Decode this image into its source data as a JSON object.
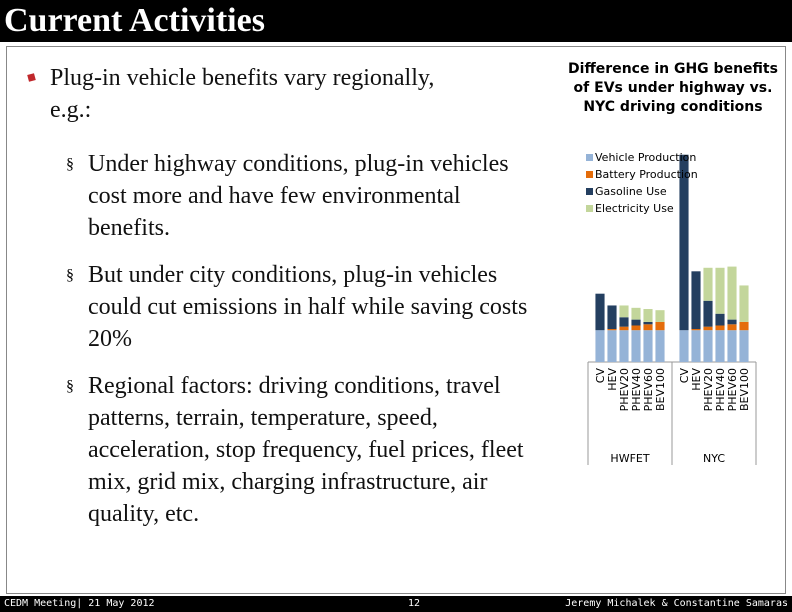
{
  "header": {
    "title": "Current Activities"
  },
  "bullets": [
    {
      "text": "Plug-in vehicle benefits vary regionally, e.g.:",
      "sub": [
        "Under highway conditions, plug-in vehicles cost more and have few environmental benefits.",
        "But under city conditions, plug-in vehicles could cut emissions in half while saving costs 20%",
        "Regional factors: driving conditions, travel patterns, terrain, temperature, speed, acceleration, stop frequency, fuel prices, fleet mix, grid mix, charging infrastructure, air quality, etc."
      ]
    }
  ],
  "chart_data": {
    "type": "stacked-bar",
    "title": "Difference in GHG benefits of EVs under highway vs. NYC driving conditions",
    "categories": [
      "CV",
      "HEV",
      "PHEV20",
      "PHEV40",
      "PHEV60",
      "BEV100",
      "CV",
      "HEV",
      "PHEV20",
      "PHEV40",
      "PHEV60",
      "BEV100"
    ],
    "groups": [
      "HWFET",
      "NYC"
    ],
    "ylim": [
      0,
      18
    ],
    "series": [
      {
        "name": "Vehicle Production",
        "color": "#95b3d7",
        "values": [
          2.7,
          2.7,
          2.7,
          2.7,
          2.7,
          2.7,
          2.7,
          2.7,
          2.7,
          2.7,
          2.7,
          2.7
        ]
      },
      {
        "name": "Battery Production",
        "color": "#e46c0a",
        "values": [
          0,
          0.1,
          0.3,
          0.4,
          0.5,
          0.7,
          0,
          0.1,
          0.3,
          0.4,
          0.5,
          0.7
        ]
      },
      {
        "name": "Gasoline Use",
        "color": "#243f60",
        "values": [
          3.1,
          2.0,
          0.8,
          0.5,
          0.2,
          0,
          14.9,
          4.9,
          2.2,
          1.0,
          0.4,
          0
        ]
      },
      {
        "name": "Electricity Use",
        "color": "#c3d69b",
        "values": [
          0,
          0,
          1.0,
          1.0,
          1.1,
          1.0,
          0,
          0,
          2.8,
          3.9,
          4.5,
          3.1
        ]
      }
    ]
  },
  "footer": {
    "left": "CEDM Meeting| 21 May 2012",
    "page": "12",
    "right": "Jeremy Michalek & Constantine Samaras"
  }
}
